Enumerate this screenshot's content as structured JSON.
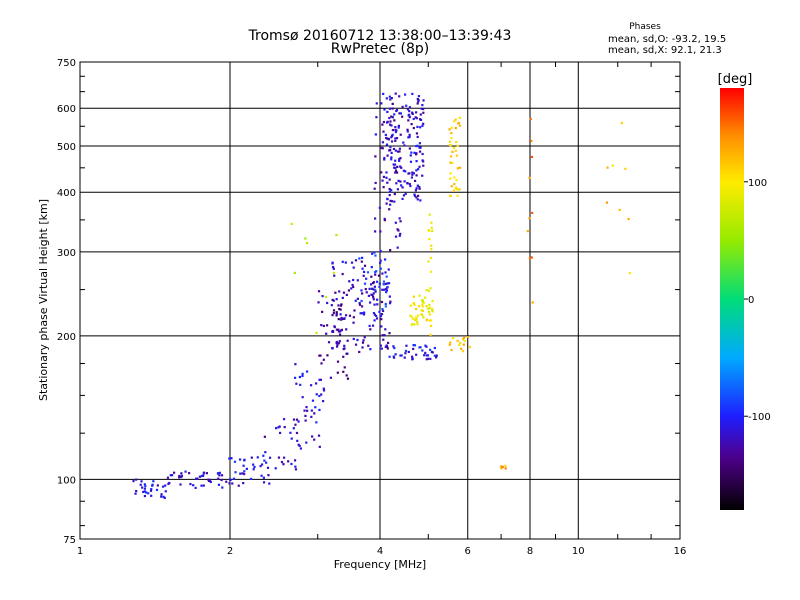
{
  "chart_data": {
    "type": "scatter",
    "title": "Tromsø 20160712 13:38:00–13:39:43",
    "subtitle": "RwPretec (8p)",
    "xlabel": "Frequency [MHz]",
    "ylabel": "Stationary phase Virtual Height [km]",
    "x_scale": "log",
    "y_scale": "log",
    "xlim": [
      1,
      16
    ],
    "ylim": [
      75,
      750
    ],
    "x_ticks": [
      1,
      2,
      4,
      6,
      8,
      10,
      16
    ],
    "x_tick_labels": [
      "1",
      "2",
      "4",
      "6",
      "8",
      "10",
      "16"
    ],
    "y_ticks": [
      75,
      100,
      200,
      300,
      400,
      500,
      600,
      750
    ],
    "y_tick_labels": [
      "75",
      "100",
      "200",
      "300",
      "400",
      "500",
      "600",
      "750"
    ],
    "grid": true,
    "stats": {
      "heading": "Phases",
      "line_o": "mean, sd,O: -93.2, 19.5",
      "line_x": "mean, sd,X:  92.1, 21.3"
    },
    "colorbar": {
      "label": "[deg]",
      "range": [
        -180,
        180
      ],
      "ticks": [
        100,
        0,
        -100
      ],
      "tick_labels": [
        "100",
        "0",
        "-100"
      ]
    },
    "clusters": [
      {
        "phase": -110,
        "n": 30,
        "f": [
          1.28,
          1.5
        ],
        "h": [
          91,
          100
        ]
      },
      {
        "phase": -115,
        "n": 40,
        "f": [
          1.5,
          1.95
        ],
        "h": [
          96,
          104
        ]
      },
      {
        "phase": -110,
        "n": 35,
        "f": [
          1.95,
          2.4
        ],
        "h": [
          97,
          112
        ]
      },
      {
        "phase": -115,
        "n": 30,
        "f": [
          2.3,
          2.75
        ],
        "h": [
          105,
          135
        ]
      },
      {
        "phase": -110,
        "n": 40,
        "f": [
          2.7,
          3.1
        ],
        "h": [
          115,
          175
        ]
      },
      {
        "phase": -130,
        "n": 50,
        "f": [
          3.0,
          3.45
        ],
        "h": [
          160,
          250
        ]
      },
      {
        "phase": -120,
        "n": 130,
        "f": [
          3.2,
          4.2
        ],
        "h": [
          185,
          290
        ]
      },
      {
        "phase": -95,
        "n": 40,
        "f": [
          3.6,
          4.2
        ],
        "h": [
          220,
          300
        ]
      },
      {
        "phase": -125,
        "n": 60,
        "f": [
          3.9,
          4.4
        ],
        "h": [
          300,
          650
        ]
      },
      {
        "phase": -115,
        "n": 170,
        "f": [
          4.05,
          4.9
        ],
        "h": [
          380,
          650
        ]
      },
      {
        "phase": -105,
        "n": 40,
        "f": [
          4.1,
          5.3
        ],
        "h": [
          178,
          192
        ]
      },
      {
        "phase": 110,
        "n": 40,
        "f": [
          5.5,
          5.8
        ],
        "h": [
          390,
          580
        ]
      },
      {
        "phase": 95,
        "n": 45,
        "f": [
          4.6,
          5.1
        ],
        "h": [
          210,
          250
        ]
      },
      {
        "phase": 95,
        "n": 20,
        "f": [
          5.0,
          5.1
        ],
        "h": [
          200,
          360
        ]
      },
      {
        "phase": 110,
        "n": 15,
        "f": [
          5.5,
          6.1
        ],
        "h": [
          185,
          200
        ]
      },
      {
        "phase": 140,
        "n": 10,
        "f": [
          7.9,
          8.1
        ],
        "h": [
          210,
          600
        ]
      },
      {
        "phase": 130,
        "n": 5,
        "f": [
          6.6,
          7.2
        ],
        "h": [
          105,
          107
        ]
      },
      {
        "phase": 60,
        "n": 8,
        "f": [
          2.6,
          3.3
        ],
        "h": [
          200,
          345
        ]
      },
      {
        "phase": 120,
        "n": 8,
        "f": [
          11.2,
          12.8
        ],
        "h": [
          270,
          650
        ]
      }
    ]
  }
}
